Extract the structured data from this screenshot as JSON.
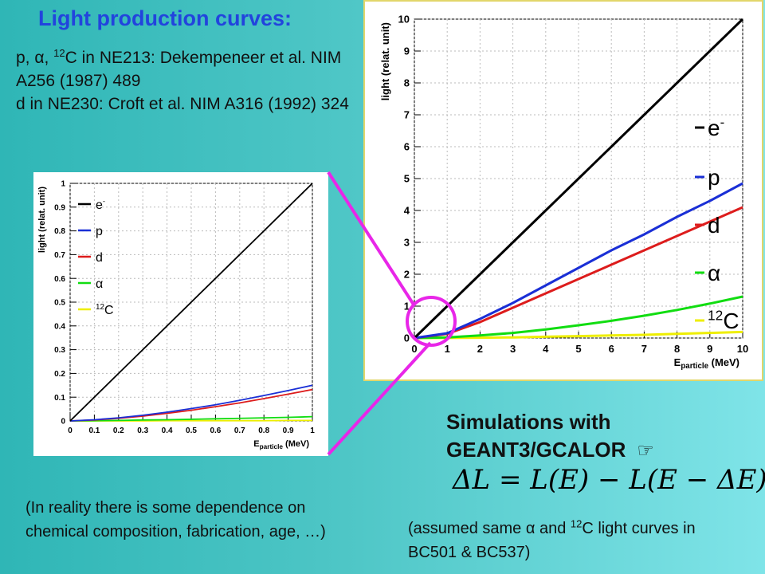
{
  "title": "Light production curves:",
  "refs": {
    "line1_pre": "p, ",
    "line1_alpha": "α",
    "line1_mid": ", ",
    "line1_sup": "12",
    "line1_post": "C in NE213: Dekempeneer et al. NIM A256 (1987) 489",
    "line2": "d in NE230: Croft et al. NIM A316 (1992) 324"
  },
  "simulations": {
    "line1": "Simulations with",
    "line2": "GEANT3/GCALOR",
    "icon": "pointing-hand-icon",
    "icon_glyph": "☞"
  },
  "formula": "ΔL = L(E) − L(E − ΔE)",
  "note_left": "(In reality there is some dependence on chemical composition, fabrication, age, …)",
  "note_right": {
    "pre": "(assumed same ",
    "alpha": "α",
    "mid": " and ",
    "sup": "12",
    "post": "C light curves in BC501 & BC537)"
  },
  "colors": {
    "title": "#2244dd",
    "electron": "#000000",
    "proton": "#1a2fd6",
    "deuteron": "#dd1c1c",
    "alpha": "#11dd11",
    "carbon": "#eeee00",
    "connector": "#e826e8"
  },
  "chart_data": [
    {
      "type": "line",
      "xlabel": "E_particle (MeV)",
      "ylabel": "light (relat. unit)",
      "xlim": [
        0,
        1
      ],
      "ylim": [
        0,
        1
      ],
      "x_ticks": [
        "0",
        "0.1",
        "0.2",
        "0.3",
        "0.4",
        "0.5",
        "0.6",
        "0.7",
        "0.8",
        "0.9",
        "1"
      ],
      "y_ticks": [
        "0",
        "0.1",
        "0.2",
        "0.3",
        "0.4",
        "0.5",
        "0.6",
        "0.7",
        "0.8",
        "0.9",
        "1"
      ],
      "grid": true,
      "legend_position": "top-left",
      "x": [
        0,
        0.1,
        0.2,
        0.3,
        0.4,
        0.5,
        0.6,
        0.7,
        0.8,
        0.9,
        1.0
      ],
      "series": [
        {
          "name": "e-",
          "values": [
            0,
            0.1,
            0.2,
            0.3,
            0.4,
            0.5,
            0.6,
            0.7,
            0.8,
            0.9,
            1.0
          ]
        },
        {
          "name": "p",
          "values": [
            0,
            0.005,
            0.013,
            0.024,
            0.037,
            0.052,
            0.068,
            0.087,
            0.107,
            0.128,
            0.15
          ]
        },
        {
          "name": "d",
          "values": [
            0,
            0.004,
            0.011,
            0.02,
            0.032,
            0.045,
            0.06,
            0.076,
            0.094,
            0.113,
            0.132
          ]
        },
        {
          "name": "α",
          "values": [
            0,
            0.001,
            0.002,
            0.004,
            0.005,
            0.007,
            0.009,
            0.011,
            0.013,
            0.015,
            0.018
          ]
        },
        {
          "name": "12C",
          "values": [
            0,
            0,
            0,
            0,
            0.001,
            0.001,
            0.001,
            0.001,
            0.001,
            0.002,
            0.002
          ]
        }
      ]
    },
    {
      "type": "line",
      "xlabel": "E_particle (MeV)",
      "ylabel": "light (relat. unit)",
      "xlim": [
        0,
        10
      ],
      "ylim": [
        0,
        10
      ],
      "x_ticks": [
        "0",
        "1",
        "2",
        "3",
        "4",
        "5",
        "6",
        "7",
        "8",
        "9",
        "10"
      ],
      "y_ticks": [
        "0",
        "1",
        "2",
        "3",
        "4",
        "5",
        "6",
        "7",
        "8",
        "9",
        "10"
      ],
      "grid": true,
      "legend_position": "right",
      "x": [
        0,
        1,
        2,
        3,
        4,
        5,
        6,
        7,
        8,
        9,
        10
      ],
      "series": [
        {
          "name": "e-",
          "values": [
            0,
            1,
            2,
            3,
            4,
            5,
            6,
            7,
            8,
            9,
            10
          ]
        },
        {
          "name": "p",
          "values": [
            0,
            0.15,
            0.6,
            1.1,
            1.65,
            2.2,
            2.75,
            3.25,
            3.8,
            4.3,
            4.85
          ]
        },
        {
          "name": "d",
          "values": [
            0,
            0.13,
            0.5,
            0.95,
            1.4,
            1.85,
            2.3,
            2.75,
            3.2,
            3.65,
            4.1
          ]
        },
        {
          "name": "α",
          "values": [
            0,
            0.02,
            0.08,
            0.16,
            0.27,
            0.4,
            0.54,
            0.7,
            0.88,
            1.08,
            1.3
          ]
        },
        {
          "name": "12C",
          "values": [
            0,
            0.002,
            0.01,
            0.02,
            0.04,
            0.06,
            0.08,
            0.1,
            0.13,
            0.16,
            0.19
          ]
        }
      ]
    }
  ]
}
